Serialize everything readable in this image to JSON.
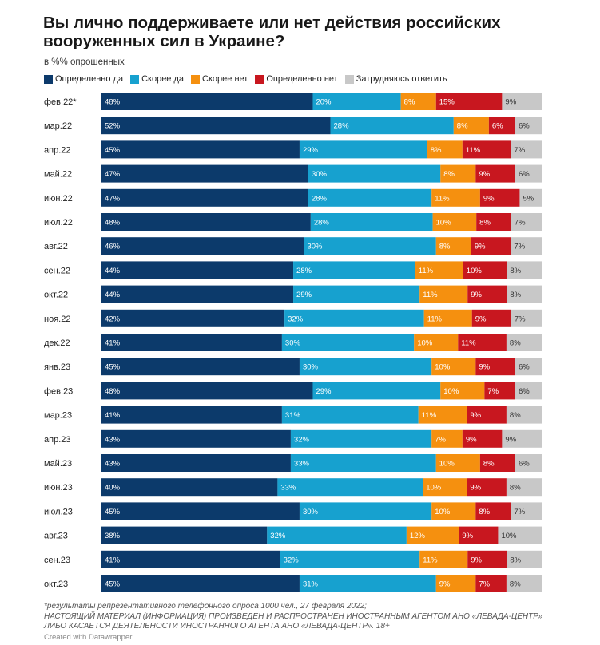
{
  "title": "Вы лично поддерживаете или нет действия российских вооруженных сил в Украине?",
  "subtitle": "в %% опрошенных",
  "legend": [
    {
      "label": "Определенно да",
      "color": "#0c3a6b"
    },
    {
      "label": "Скорее да",
      "color": "#17a1cf"
    },
    {
      "label": "Скорее нет",
      "color": "#f5900f"
    },
    {
      "label": "Определенно нет",
      "color": "#c8171f"
    },
    {
      "label": "Затрудняюсь ответить",
      "color": "#c8c8c8"
    }
  ],
  "chart_data": {
    "type": "bar",
    "orientation": "horizontal",
    "stacked": true,
    "unit": "%",
    "categories": [
      "фев.22*",
      "мар.22",
      "апр.22",
      "май.22",
      "июн.22",
      "июл.22",
      "авг.22",
      "сен.22",
      "окт.22",
      "ноя.22",
      "дек.22",
      "янв.23",
      "фев.23",
      "мар.23",
      "апр.23",
      "май.23",
      "июн.23",
      "июл.23",
      "авг.23",
      "сен.23",
      "окт.23"
    ],
    "series": [
      {
        "name": "Определенно да",
        "color": "#0c3a6b",
        "label_color": "#ffffff",
        "values": [
          48,
          52,
          45,
          47,
          47,
          48,
          46,
          44,
          44,
          42,
          41,
          45,
          48,
          41,
          43,
          43,
          40,
          45,
          38,
          41,
          45
        ]
      },
      {
        "name": "Скорее да",
        "color": "#17a1cf",
        "label_color": "#ffffff",
        "values": [
          20,
          28,
          29,
          30,
          28,
          28,
          30,
          28,
          29,
          32,
          30,
          30,
          29,
          31,
          32,
          33,
          33,
          30,
          32,
          32,
          31
        ]
      },
      {
        "name": "Скорее нет",
        "color": "#f5900f",
        "label_color": "#ffffff",
        "values": [
          8,
          8,
          8,
          8,
          11,
          10,
          8,
          11,
          11,
          11,
          10,
          10,
          10,
          11,
          7,
          10,
          10,
          10,
          12,
          11,
          9
        ]
      },
      {
        "name": "Определенно нет",
        "color": "#c8171f",
        "label_color": "#ffffff",
        "values": [
          15,
          6,
          11,
          9,
          9,
          8,
          9,
          10,
          9,
          9,
          11,
          9,
          7,
          9,
          9,
          8,
          9,
          8,
          9,
          9,
          7
        ]
      },
      {
        "name": "Затрудняюсь ответить",
        "color": "#c8c8c8",
        "label_color": "#333333",
        "values": [
          9,
          6,
          7,
          6,
          5,
          7,
          7,
          8,
          8,
          7,
          8,
          6,
          6,
          8,
          9,
          6,
          8,
          7,
          10,
          8,
          8
        ]
      }
    ]
  },
  "notes": {
    "line1": "*результаты репрезентативного телефонного опроса 1000 чел., 27 февраля 2022;",
    "line2": "НАСТОЯЩИЙ МАТЕРИАЛ (ИНФОРМАЦИЯ) ПРОИЗВЕДЕН И РАСПРОСТРАНЕН ИНОСТРАННЫМ АГЕНТОМ АНО «ЛЕВАДА-ЦЕНТР»",
    "line3": "ЛИБО КАСАЕТСЯ ДЕЯТЕЛЬНОСТИ ИНОСТРАННОГО АГЕНТА АНО «ЛЕВАДА-ЦЕНТР». 18+"
  },
  "credit": "Created with Datawrapper"
}
